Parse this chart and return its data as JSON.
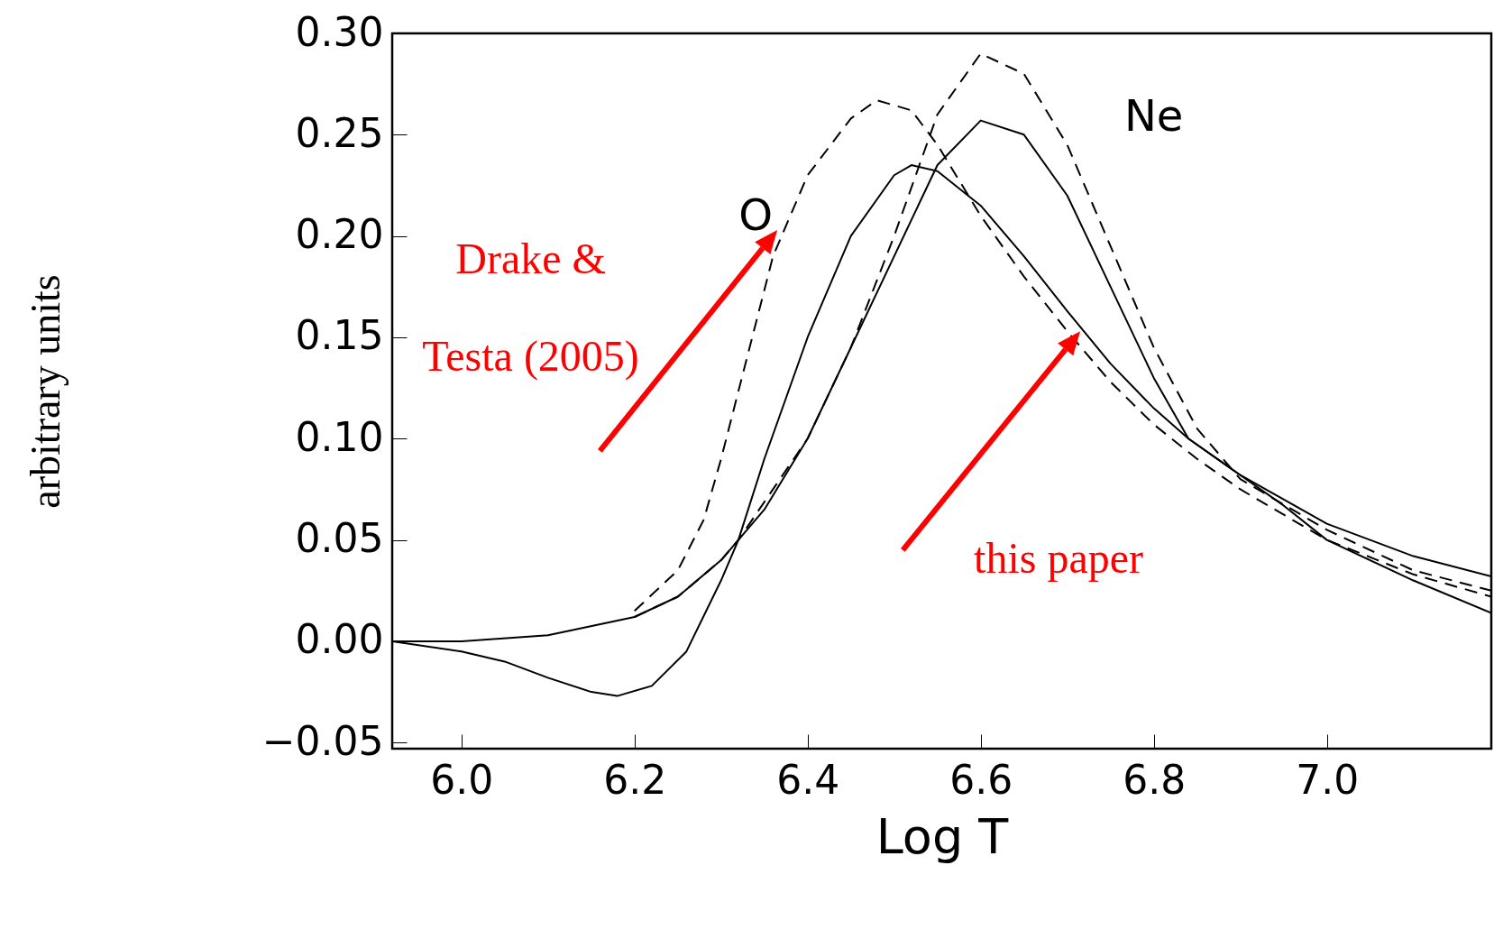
{
  "chart_data": {
    "type": "line",
    "xlabel": "Log T",
    "ylabel": "arbitrary units",
    "xlim": [
      5.92,
      7.19
    ],
    "ylim": [
      -0.053,
      0.3
    ],
    "xticks": [
      {
        "value": 6,
        "label": "6.0"
      },
      {
        "value": 6.2,
        "label": "6.2"
      },
      {
        "value": 6.4,
        "label": "6.4"
      },
      {
        "value": 6.6,
        "label": "6.6"
      },
      {
        "value": 6.8,
        "label": "6.8"
      },
      {
        "value": 7,
        "label": "7.0"
      }
    ],
    "yticks": [
      {
        "value": -0.05,
        "label": "−0.05"
      },
      {
        "value": 0,
        "label": "0.00"
      },
      {
        "value": 0.05,
        "label": "0.05"
      },
      {
        "value": 0.1,
        "label": "0.10"
      },
      {
        "value": 0.15,
        "label": "0.15"
      },
      {
        "value": 0.2,
        "label": "0.20"
      },
      {
        "value": 0.25,
        "label": "0.25"
      },
      {
        "value": 0.3,
        "label": "0.30"
      }
    ],
    "grid": false,
    "annotations": [
      "Drake &\nTesta (2005)",
      "this paper",
      "O",
      "Ne"
    ],
    "series": [
      {
        "color": "#000000",
        "line_style": "solid",
        "x": [
          5.92,
          6.0,
          6.05,
          6.1,
          6.15,
          6.18,
          6.22,
          6.26,
          6.3,
          6.32,
          6.35,
          6.4,
          6.45,
          6.5,
          6.52,
          6.55,
          6.6,
          6.65,
          6.7,
          6.75,
          6.8,
          6.84,
          6.9,
          6.95,
          7.0,
          7.1,
          7.19
        ],
        "values": [
          0,
          -0.005,
          -0.01,
          -0.018,
          -0.025,
          -0.027,
          -0.022,
          -0.005,
          0.03,
          0.05,
          0.09,
          0.15,
          0.2,
          0.23,
          0.235,
          0.232,
          0.215,
          0.19,
          0.163,
          0.137,
          0.115,
          0.1,
          0.082,
          0.067,
          0.05,
          0.03,
          0.014
        ]
      },
      {
        "color": "#000000",
        "line_style": "solid",
        "x": [
          5.92,
          6.0,
          6.1,
          6.2,
          6.25,
          6.3,
          6.32,
          6.35,
          6.4,
          6.45,
          6.5,
          6.55,
          6.6,
          6.65,
          6.7,
          6.75,
          6.8,
          6.84,
          6.9,
          7.0,
          7.1,
          7.19
        ],
        "values": [
          0,
          0,
          0.003,
          0.012,
          0.022,
          0.04,
          0.05,
          0.065,
          0.1,
          0.145,
          0.19,
          0.235,
          0.257,
          0.25,
          0.22,
          0.175,
          0.13,
          0.1,
          0.082,
          0.058,
          0.042,
          0.032
        ]
      },
      {
        "color": "#000000",
        "line_style": "dashed",
        "x": [
          6.2,
          6.25,
          6.28,
          6.3,
          6.33,
          6.36,
          6.4,
          6.45,
          6.48,
          6.52,
          6.55,
          6.6,
          6.65,
          6.7,
          6.75,
          6.8,
          6.85,
          6.9,
          7.0,
          7.1,
          7.19
        ],
        "values": [
          0.015,
          0.035,
          0.06,
          0.09,
          0.14,
          0.19,
          0.23,
          0.258,
          0.267,
          0.262,
          0.245,
          0.21,
          0.18,
          0.153,
          0.128,
          0.107,
          0.09,
          0.075,
          0.05,
          0.033,
          0.022
        ]
      },
      {
        "color": "#000000",
        "line_style": "dashed",
        "x": [
          6.2,
          6.25,
          6.3,
          6.32,
          6.4,
          6.45,
          6.5,
          6.55,
          6.6,
          6.65,
          6.7,
          6.75,
          6.8,
          6.85,
          6.9,
          7.0,
          7.1,
          7.19
        ],
        "values": [
          0.012,
          0.022,
          0.04,
          0.05,
          0.1,
          0.145,
          0.2,
          0.26,
          0.29,
          0.28,
          0.245,
          0.195,
          0.145,
          0.105,
          0.08,
          0.055,
          0.035,
          0.025
        ]
      }
    ]
  }
}
